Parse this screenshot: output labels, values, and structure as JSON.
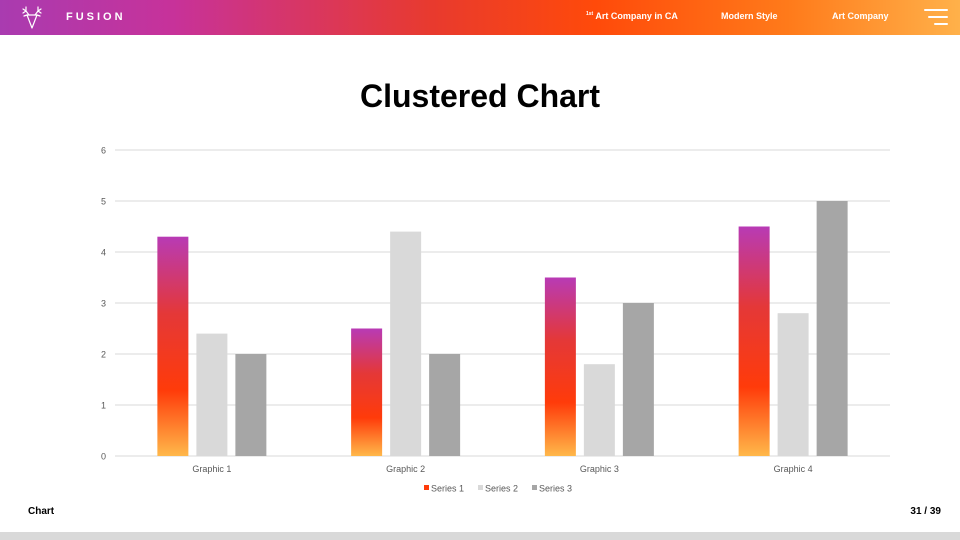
{
  "header": {
    "brand": "FUSION",
    "logo_icon": "deer-head-icon",
    "nav": [
      {
        "label": "Art Company in CA",
        "prefix": "1st"
      },
      {
        "label": "Modern Style"
      },
      {
        "label": "Art Company"
      }
    ],
    "menu_icon": "hamburger-menu-icon"
  },
  "slide": {
    "title": "Clustered Chart",
    "footer_left": "Chart",
    "page": "31 / 39"
  },
  "colors": {
    "series1_gradient": [
      "#ffb84a",
      "#ff3b0a",
      "#e43838",
      "#b83ab5"
    ],
    "series2": "#d9d9d9",
    "series3": "#a6a6a6",
    "grid": "#d9d9d9",
    "text": "#595959"
  },
  "chart_data": {
    "type": "bar",
    "categories": [
      "Graphic 1",
      "Graphic 2",
      "Graphic 3",
      "Graphic 4"
    ],
    "series": [
      {
        "name": "Series 1",
        "values": [
          4.3,
          2.5,
          3.5,
          4.5
        ]
      },
      {
        "name": "Series 2",
        "values": [
          2.4,
          4.4,
          1.8,
          2.8
        ]
      },
      {
        "name": "Series 3",
        "values": [
          2.0,
          2.0,
          3.0,
          5.0
        ]
      }
    ],
    "yticks": [
      "0",
      "1",
      "2",
      "3",
      "4",
      "5",
      "6"
    ],
    "ylim": [
      0,
      6
    ],
    "grid": true,
    "legend": "bottom"
  }
}
